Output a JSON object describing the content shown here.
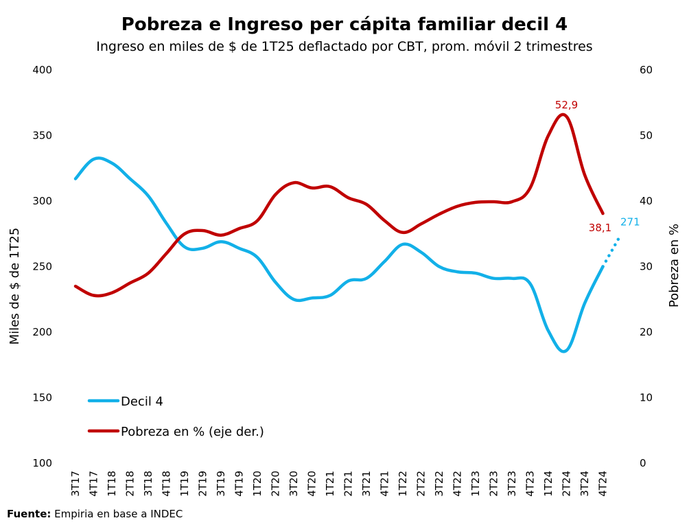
{
  "chart_data": {
    "type": "line",
    "title": "Pobreza e Ingreso per cápita familiar decil 4",
    "subtitle": "Ingreso en miles de $ de 1T25 deflactado por CBT, prom. móvil 2 trimestres",
    "ylabel_left": "Miles de $ de 1T25",
    "ylabel_right": "Pobreza en %",
    "ylim_left": [
      100,
      400
    ],
    "ylim_right": [
      0,
      60
    ],
    "yticks_left": [
      "100",
      "150",
      "200",
      "250",
      "300",
      "350",
      "400"
    ],
    "yticks_right": [
      "0",
      "10",
      "20",
      "30",
      "40",
      "50",
      "60"
    ],
    "categories": [
      "3T17",
      "4T17",
      "1T18",
      "2T18",
      "3T18",
      "4T18",
      "1T19",
      "2T19",
      "3T19",
      "4T19",
      "1T20",
      "2T20",
      "3T20",
      "4T20",
      "1T21",
      "2T21",
      "3T21",
      "4T21",
      "1T22",
      "2T22",
      "3T22",
      "4T22",
      "1T23",
      "2T23",
      "3T23",
      "4T23",
      "1T24",
      "2T24",
      "3T24",
      "4T24"
    ],
    "series": [
      {
        "name": "Decil 4",
        "axis": "left",
        "color": "#12b0e8",
        "values": [
          317,
          332,
          329,
          317,
          304,
          283,
          265,
          264,
          269,
          264,
          257,
          238,
          225,
          226,
          228,
          239,
          241,
          254,
          267,
          261,
          250,
          246,
          245,
          241,
          241,
          237,
          201,
          186,
          222,
          250
        ],
        "projection": {
          "category_offset": 0.85,
          "value": 271
        },
        "end_label": "271"
      },
      {
        "name": "Pobreza en % (eje der.)",
        "axis": "right",
        "color": "#c00000",
        "values": [
          27.0,
          25.6,
          26.0,
          27.5,
          29.0,
          32.0,
          35.0,
          35.5,
          34.8,
          35.8,
          37.0,
          41.0,
          42.8,
          42.0,
          42.2,
          40.5,
          39.5,
          37.0,
          35.2,
          36.5,
          38.0,
          39.2,
          39.8,
          39.9,
          39.9,
          42.0,
          50.0,
          52.9,
          44.0,
          38.1
        ],
        "max_label": "52,9",
        "end_label": "38,1"
      }
    ],
    "legend": {
      "placement": "bottom-left"
    },
    "grid": false
  },
  "source": {
    "label": "Fuente:",
    "text": " Empiria en base a INDEC"
  }
}
